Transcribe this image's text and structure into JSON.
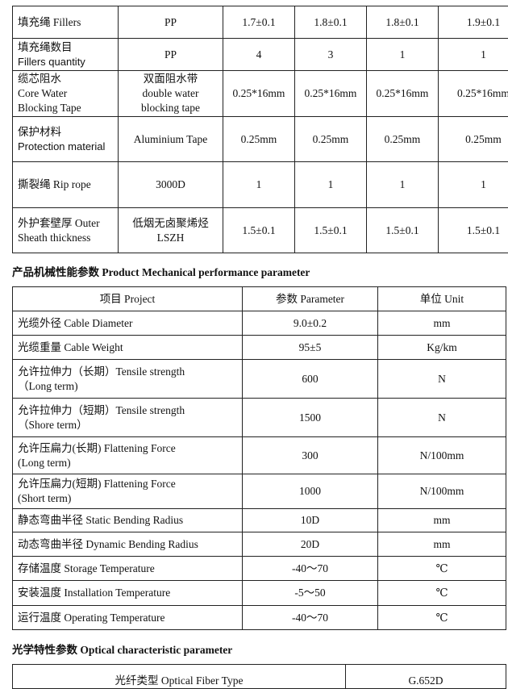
{
  "structure_table": {
    "rows": [
      {
        "label": [
          "填充绳 Fillers"
        ],
        "material": [
          "PP"
        ],
        "values": [
          "1.7±0.1",
          "1.8±0.1",
          "1.8±0.1",
          "1.9±0.1"
        ]
      },
      {
        "label": [
          "填充绳数目",
          "Fillers quantity"
        ],
        "material": [
          "PP"
        ],
        "values": [
          "4",
          "3",
          "1",
          "1"
        ]
      },
      {
        "label": [
          "缆芯阻水",
          "Core Water",
          "Blocking Tape"
        ],
        "material": [
          "双面阻水带",
          "double water",
          "blocking tape"
        ],
        "values": [
          "0.25*16mm",
          "0.25*16mm",
          "0.25*16mm",
          "0.25*16mm"
        ]
      },
      {
        "label": [
          "保护材料",
          "Protection material"
        ],
        "material": [
          "Aluminium Tape"
        ],
        "values": [
          "0.25mm",
          "0.25mm",
          "0.25mm",
          "0.25mm"
        ]
      },
      {
        "label": [
          "撕裂绳 Rip rope"
        ],
        "material": [
          "3000D"
        ],
        "values": [
          "1",
          "1",
          "1",
          "1"
        ]
      },
      {
        "label": [
          "外护套壁厚 Outer",
          "Sheath thickness"
        ],
        "material": [
          "低烟无卤聚烯烃",
          "LSZH"
        ],
        "values": [
          "1.5±0.1",
          "1.5±0.1",
          "1.5±0.1",
          "1.5±0.1"
        ]
      }
    ]
  },
  "mechanical": {
    "title": "产品机械性能参数 Product Mechanical performance parameter",
    "headers": [
      "项目 Project",
      "参数 Parameter",
      "单位 Unit"
    ],
    "rows": [
      {
        "item": [
          "光缆外径  Cable Diameter"
        ],
        "param": "9.0±0.2",
        "unit": "mm"
      },
      {
        "item": [
          "光缆重量  Cable Weight"
        ],
        "param": "95±5",
        "unit": "Kg/km"
      },
      {
        "item": [
          "允许拉伸力（长期）Tensile strength",
          "（Long term)"
        ],
        "param": "600",
        "unit": "N"
      },
      {
        "item": [
          "允许拉伸力（短期）Tensile strength",
          "（Shore term）"
        ],
        "param": "1500",
        "unit": "N"
      },
      {
        "item": [
          "允许压扁力(长期) Flattening Force",
          "(Long term)"
        ],
        "param": "300",
        "unit": "N/100mm"
      },
      {
        "item": [
          "允许压扁力(短期) Flattening Force",
          "(Short term)"
        ],
        "param": "1000",
        "unit": "N/100mm"
      },
      {
        "item": [
          "静态弯曲半径 Static Bending Radius"
        ],
        "param": "10D",
        "unit": "mm"
      },
      {
        "item": [
          "动态弯曲半径 Dynamic Bending Radius"
        ],
        "param": "20D",
        "unit": "mm"
      },
      {
        "item": [
          "存储温度 Storage Temperature"
        ],
        "param": "-40～70",
        "unit": "℃"
      },
      {
        "item": [
          "安装温度 Installation Temperature"
        ],
        "param": "-5～50",
        "unit": "℃"
      },
      {
        "item": [
          "运行温度 Operating Temperature"
        ],
        "param": "-40～70",
        "unit": "℃"
      }
    ]
  },
  "optical": {
    "title": "光学特性参数 Optical characteristic parameter",
    "rows": [
      {
        "item": "光纤类型 Optical Fiber Type",
        "value": "G.652D"
      }
    ]
  }
}
